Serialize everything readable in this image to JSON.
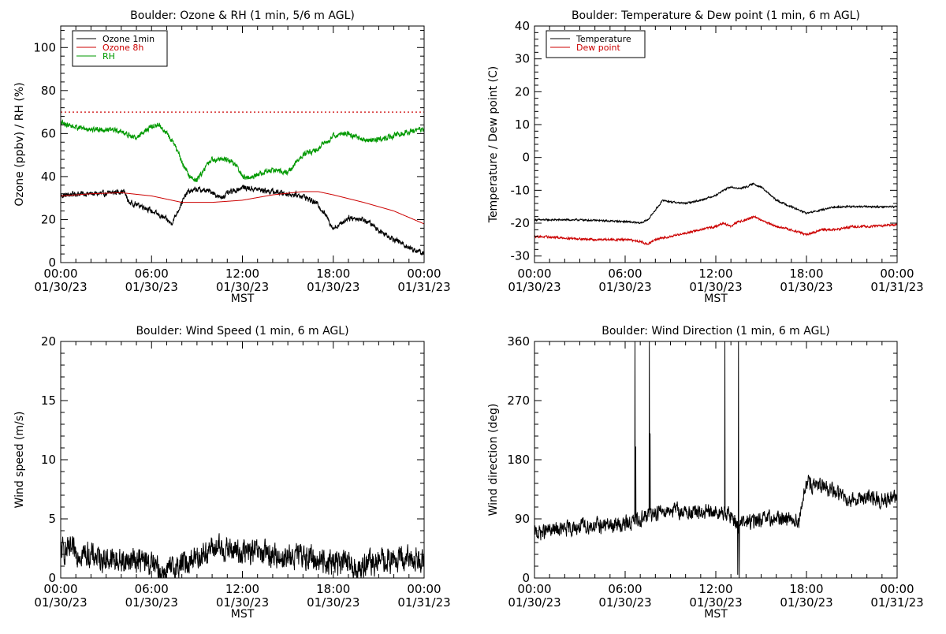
{
  "chart_data": [
    {
      "type": "line",
      "title": "Boulder: Ozone & RH (1 min, 5/6 m AGL)",
      "xlabel": "MST",
      "ylabel": "Ozone (ppbv) / RH (%)",
      "x_ticks": [
        {
          "time": "00:00",
          "date": "01/30/23"
        },
        {
          "time": "06:00",
          "date": "01/30/23"
        },
        {
          "time": "12:00",
          "date": "01/30/23"
        },
        {
          "time": "18:00",
          "date": "01/30/23"
        },
        {
          "time": "00:00",
          "date": "01/31/23"
        }
      ],
      "xlim_hours": [
        0,
        24
      ],
      "ylim": [
        0,
        110
      ],
      "y_ticks": [
        0,
        20,
        40,
        60,
        80,
        100
      ],
      "legend": "top-left",
      "threshold": {
        "value": 70,
        "color": "#cc0000",
        "style": "dotted"
      },
      "series": [
        {
          "name": "Ozone 1min",
          "color": "#000000",
          "noise": 1.2,
          "points": [
            [
              0,
              31
            ],
            [
              1,
              32
            ],
            [
              2,
              32
            ],
            [
              3,
              32
            ],
            [
              3.8,
              33
            ],
            [
              4.2,
              33
            ],
            [
              4.5,
              28
            ],
            [
              5,
              27
            ],
            [
              5.5,
              26
            ],
            [
              6,
              24
            ],
            [
              6.5,
              22
            ],
            [
              7,
              20
            ],
            [
              7.3,
              18
            ],
            [
              7.6,
              22
            ],
            [
              8,
              28
            ],
            [
              8.4,
              33
            ],
            [
              9,
              34
            ],
            [
              10,
              33
            ],
            [
              10.5,
              30
            ],
            [
              11,
              32
            ],
            [
              12,
              35
            ],
            [
              13,
              34
            ],
            [
              14,
              33
            ],
            [
              15,
              32
            ],
            [
              16,
              31
            ],
            [
              17,
              27
            ],
            [
              17.5,
              22
            ],
            [
              18,
              16
            ],
            [
              18.5,
              18
            ],
            [
              19,
              21
            ],
            [
              20,
              20
            ],
            [
              20.5,
              18
            ],
            [
              21,
              15
            ],
            [
              22,
              11
            ],
            [
              23,
              7
            ],
            [
              24,
              4
            ]
          ]
        },
        {
          "name": "Ozone 8h",
          "color": "#cc0000",
          "noise": 0,
          "points": [
            [
              0,
              31
            ],
            [
              2,
              32
            ],
            [
              4,
              32.5
            ],
            [
              6,
              31
            ],
            [
              8,
              28
            ],
            [
              10,
              28
            ],
            [
              12,
              29
            ],
            [
              14,
              31.5
            ],
            [
              16,
              33
            ],
            [
              17,
              33
            ],
            [
              18,
              31.5
            ],
            [
              20,
              28
            ],
            [
              22,
              24
            ],
            [
              24,
              18
            ]
          ]
        },
        {
          "name": "RH",
          "color": "#009900",
          "noise": 1.2,
          "points": [
            [
              0,
              65
            ],
            [
              1,
              63
            ],
            [
              2,
              62
            ],
            [
              3,
              62
            ],
            [
              4,
              61
            ],
            [
              4.5,
              59
            ],
            [
              5,
              58
            ],
            [
              5.5,
              61
            ],
            [
              6,
              63
            ],
            [
              6.5,
              64
            ],
            [
              7,
              60
            ],
            [
              7.5,
              55
            ],
            [
              8,
              47
            ],
            [
              8.5,
              40
            ],
            [
              9,
              38
            ],
            [
              9.5,
              44
            ],
            [
              10,
              48
            ],
            [
              11,
              48
            ],
            [
              11.5,
              46
            ],
            [
              12,
              40
            ],
            [
              12.5,
              39
            ],
            [
              13,
              41
            ],
            [
              14,
              43
            ],
            [
              15,
              42
            ],
            [
              15.5,
              46
            ],
            [
              16,
              50
            ],
            [
              17,
              53
            ],
            [
              18,
              59
            ],
            [
              19,
              60
            ],
            [
              20,
              57
            ],
            [
              21,
              57
            ],
            [
              22,
              59
            ],
            [
              23,
              61
            ],
            [
              24,
              62
            ]
          ]
        }
      ]
    },
    {
      "type": "line",
      "title": "Boulder: Temperature & Dew point (1 min, 6 m AGL)",
      "xlabel": "MST",
      "ylabel": "Temperature / Dew point (C)",
      "x_ticks": [
        {
          "time": "00:00",
          "date": "01/30/23"
        },
        {
          "time": "06:00",
          "date": "01/30/23"
        },
        {
          "time": "12:00",
          "date": "01/30/23"
        },
        {
          "time": "18:00",
          "date": "01/30/23"
        },
        {
          "time": "00:00",
          "date": "01/31/23"
        }
      ],
      "xlim_hours": [
        0,
        24
      ],
      "ylim": [
        -32,
        40
      ],
      "y_ticks": [
        -30,
        -20,
        -10,
        0,
        10,
        20,
        30,
        40
      ],
      "legend": "top-left",
      "series": [
        {
          "name": "Temperature",
          "color": "#000000",
          "noise": 0.25,
          "points": [
            [
              0,
              -19
            ],
            [
              3,
              -19
            ],
            [
              6,
              -19.5
            ],
            [
              7,
              -20
            ],
            [
              7.5,
              -19
            ],
            [
              8,
              -16
            ],
            [
              8.5,
              -13
            ],
            [
              9,
              -13.5
            ],
            [
              10,
              -14
            ],
            [
              11,
              -13
            ],
            [
              12,
              -11.5
            ],
            [
              12.5,
              -10
            ],
            [
              13,
              -9
            ],
            [
              13.5,
              -9.5
            ],
            [
              14,
              -9
            ],
            [
              14.5,
              -8
            ],
            [
              15,
              -9
            ],
            [
              15.5,
              -11
            ],
            [
              16,
              -13
            ],
            [
              17,
              -15
            ],
            [
              18,
              -17
            ],
            [
              19,
              -16
            ],
            [
              20,
              -15
            ],
            [
              22,
              -15
            ],
            [
              24,
              -15
            ]
          ]
        },
        {
          "name": "Dew point",
          "color": "#cc0000",
          "noise": 0.3,
          "points": [
            [
              0,
              -24
            ],
            [
              2,
              -24.5
            ],
            [
              4,
              -25
            ],
            [
              6,
              -25
            ],
            [
              7,
              -25.5
            ],
            [
              7.5,
              -26.5
            ],
            [
              8,
              -25
            ],
            [
              9,
              -24
            ],
            [
              10,
              -23
            ],
            [
              11,
              -22
            ],
            [
              12,
              -21
            ],
            [
              12.5,
              -20
            ],
            [
              13,
              -21
            ],
            [
              13.5,
              -19.5
            ],
            [
              14,
              -19
            ],
            [
              14.5,
              -18
            ],
            [
              15,
              -19
            ],
            [
              16,
              -21
            ],
            [
              17,
              -22
            ],
            [
              18,
              -23.5
            ],
            [
              19,
              -22
            ],
            [
              20,
              -22
            ],
            [
              21,
              -21
            ],
            [
              22,
              -21
            ],
            [
              24,
              -20.5
            ]
          ]
        }
      ]
    },
    {
      "type": "line",
      "title": "Boulder: Wind Speed (1 min, 6 m AGL)",
      "xlabel": "MST",
      "ylabel": "Wind speed (m/s)",
      "x_ticks": [
        {
          "time": "00:00",
          "date": "01/30/23"
        },
        {
          "time": "06:00",
          "date": "01/30/23"
        },
        {
          "time": "12:00",
          "date": "01/30/23"
        },
        {
          "time": "18:00",
          "date": "01/30/23"
        },
        {
          "time": "00:00",
          "date": "01/31/23"
        }
      ],
      "xlim_hours": [
        0,
        24
      ],
      "ylim": [
        0,
        20
      ],
      "y_ticks": [
        0,
        5,
        10,
        15,
        20
      ],
      "legend": "none",
      "series": [
        {
          "color": "#000000",
          "noise": 1.0,
          "min": 0,
          "points": [
            [
              0,
              2.3
            ],
            [
              1,
              2.2
            ],
            [
              2,
              1.9
            ],
            [
              3,
              1.6
            ],
            [
              4,
              1.4
            ],
            [
              5,
              1.6
            ],
            [
              6,
              1.2
            ],
            [
              6.5,
              0.6
            ],
            [
              7,
              0.5
            ],
            [
              7.5,
              0.8
            ],
            [
              8,
              1.2
            ],
            [
              9,
              1.8
            ],
            [
              10,
              2.5
            ],
            [
              11,
              2.4
            ],
            [
              12,
              2.2
            ],
            [
              13,
              2.1
            ],
            [
              14,
              1.9
            ],
            [
              15,
              1.7
            ],
            [
              16,
              1.9
            ],
            [
              17,
              1.5
            ],
            [
              18,
              1.4
            ],
            [
              19,
              1.2
            ],
            [
              19.5,
              0.6
            ],
            [
              20,
              1.1
            ],
            [
              21,
              1.4
            ],
            [
              22,
              1.5
            ],
            [
              23,
              1.6
            ],
            [
              24,
              1.7
            ]
          ]
        }
      ]
    },
    {
      "type": "line",
      "title": "Boulder: Wind Direction (1 min, 6 m AGL)",
      "xlabel": "MST",
      "ylabel": "Wind direction (deg)",
      "x_ticks": [
        {
          "time": "00:00",
          "date": "01/30/23"
        },
        {
          "time": "06:00",
          "date": "01/30/23"
        },
        {
          "time": "12:00",
          "date": "01/30/23"
        },
        {
          "time": "18:00",
          "date": "01/30/23"
        },
        {
          "time": "00:00",
          "date": "01/31/23"
        }
      ],
      "xlim_hours": [
        0,
        24
      ],
      "ylim": [
        0,
        360
      ],
      "y_ticks": [
        0,
        90,
        180,
        270,
        360
      ],
      "legend": "none",
      "series": [
        {
          "color": "#000000",
          "noise": 11,
          "min": 0,
          "max": 360,
          "points": [
            [
              0,
              68
            ],
            [
              1,
              72
            ],
            [
              2,
              74
            ],
            [
              3,
              78
            ],
            [
              4,
              80
            ],
            [
              5,
              80
            ],
            [
              6,
              82
            ],
            [
              6.5,
              85
            ],
            [
              7,
              90
            ],
            [
              8,
              100
            ],
            [
              9,
              105
            ],
            [
              10,
              100
            ],
            [
              11,
              98
            ],
            [
              12,
              100
            ],
            [
              13,
              95
            ],
            [
              13.5,
              80
            ],
            [
              14,
              85
            ],
            [
              15,
              88
            ],
            [
              16,
              90
            ],
            [
              17,
              92
            ],
            [
              17.5,
              85
            ],
            [
              18,
              145
            ],
            [
              19,
              138
            ],
            [
              20,
              130
            ],
            [
              21,
              120
            ],
            [
              22,
              122
            ],
            [
              23,
              118
            ],
            [
              24,
              120
            ]
          ],
          "spikes": [
            [
              6.65,
              360
            ],
            [
              7.6,
              360
            ],
            [
              12.6,
              360
            ],
            [
              13.5,
              360
            ],
            [
              6.7,
              200
            ],
            [
              7.65,
              220
            ],
            [
              13.55,
              0
            ],
            [
              13.45,
              5
            ]
          ]
        }
      ]
    }
  ]
}
